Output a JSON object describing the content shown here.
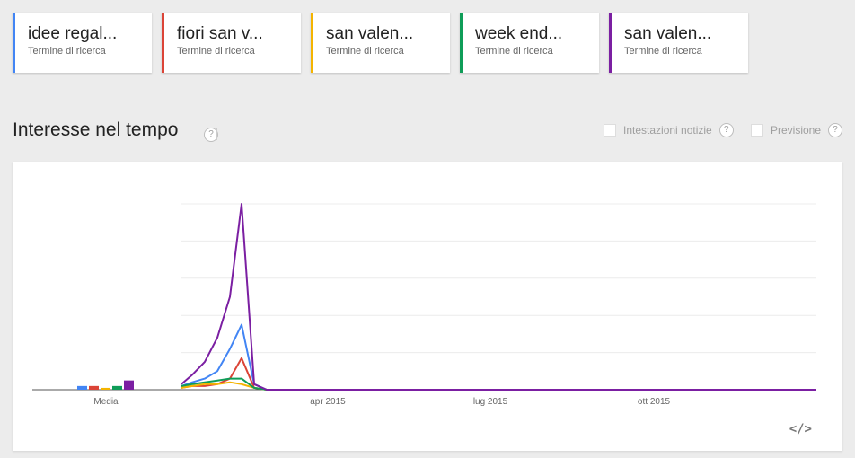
{
  "search_terms": [
    {
      "label": "idee regal...",
      "sub": "Termine di ricerca",
      "color": "#4285f4"
    },
    {
      "label": "fiori san v...",
      "sub": "Termine di ricerca",
      "color": "#db4437"
    },
    {
      "label": "san valen...",
      "sub": "Termine di ricerca",
      "color": "#f4b400"
    },
    {
      "label": "week end...",
      "sub": "Termine di ricerca",
      "color": "#0f9d58"
    },
    {
      "label": "san valen...",
      "sub": "Termine di ricerca",
      "color": "#7b1fa2"
    }
  ],
  "section": {
    "title": "Interesse nel tempo",
    "help": "?",
    "news_headlines_label": "Intestazioni notizie",
    "forecast_label": "Previsione"
  },
  "embed_label": "</>",
  "chart_data": {
    "type": "line",
    "x_ticks": [
      "apr 2015",
      "lug 2015",
      "ott 2015"
    ],
    "average_label": "Media",
    "ylim": [
      0,
      100
    ],
    "grid": true,
    "averages": [
      2,
      2,
      1,
      2,
      5
    ],
    "series": [
      {
        "name": "idee regal...",
        "color": "#4285f4",
        "values": [
          2,
          4,
          6,
          10,
          22,
          35,
          3,
          0
        ]
      },
      {
        "name": "fiori san v...",
        "color": "#db4437",
        "values": [
          1,
          2,
          2,
          3,
          6,
          17,
          1,
          0
        ]
      },
      {
        "name": "san valen...",
        "color": "#f4b400",
        "values": [
          1,
          2,
          3,
          3,
          4,
          3,
          1,
          0
        ]
      },
      {
        "name": "week end...",
        "color": "#0f9d58",
        "values": [
          2,
          3,
          4,
          5,
          6,
          6,
          1,
          0
        ]
      },
      {
        "name": "san valen...",
        "color": "#7b1fa2",
        "values": [
          3,
          8,
          15,
          28,
          50,
          100,
          3,
          0
        ]
      }
    ]
  }
}
